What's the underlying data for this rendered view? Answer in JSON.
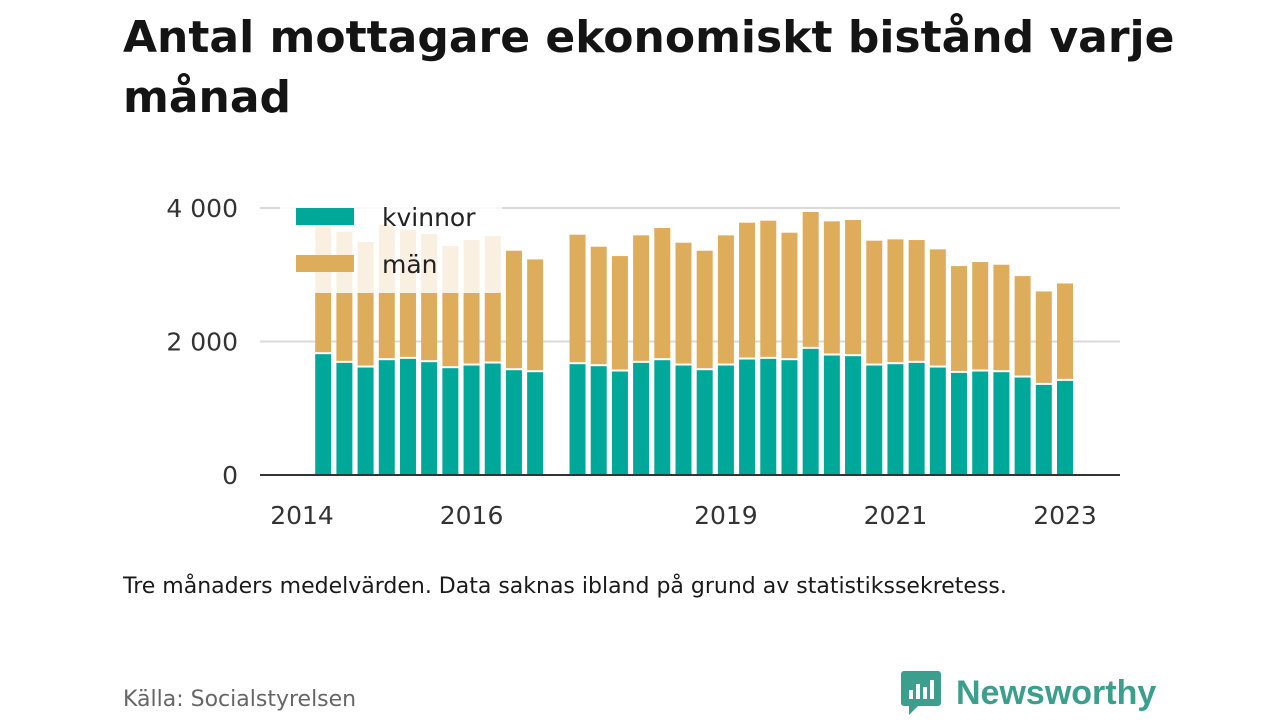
{
  "title": "Antal mottagare ekonomiskt bistånd varje månad",
  "footnote": "Tre månaders medelvärden. Data saknas ibland på grund av statistikssekretess.",
  "source": "Källa: Socialstyrelsen",
  "brand": {
    "name": "Newsworthy",
    "color": "#3c9e8c"
  },
  "chart_data": {
    "type": "bar",
    "stacked": true,
    "ylim": [
      0,
      4000
    ],
    "yticks": [
      0,
      2000,
      4000
    ],
    "ytick_labels": [
      "0",
      "2 000",
      "4 000"
    ],
    "xtick_labels": [
      "2014",
      "2016",
      "2019",
      "2021",
      "2023"
    ],
    "grid": true,
    "legend_position": "top-left",
    "categories": [
      "2014-Q2",
      "2014-Q3",
      "2014-Q4",
      "2015-Q1",
      "2015-Q2",
      "2015-Q3",
      "2015-Q4",
      "2016-Q1",
      "2016-Q2",
      "2016-Q3",
      "2016-Q4",
      "2017-Q1",
      "2017-Q2",
      "2017-Q3",
      "2017-Q4",
      "2018-Q1",
      "2018-Q2",
      "2018-Q3",
      "2018-Q4",
      "2019-Q1",
      "2019-Q2",
      "2019-Q3",
      "2019-Q4",
      "2020-Q1",
      "2020-Q2",
      "2020-Q3",
      "2020-Q4",
      "2021-Q1",
      "2021-Q2",
      "2021-Q3",
      "2021-Q4",
      "2022-Q1",
      "2022-Q2",
      "2022-Q3",
      "2022-Q4",
      "2023-Q1"
    ],
    "series": [
      {
        "name": "kvinnor",
        "color": "#00a89a",
        "values": [
          1810,
          1680,
          1610,
          1720,
          1740,
          1690,
          1600,
          1640,
          1670,
          1570,
          1540,
          null,
          1660,
          1630,
          1550,
          1680,
          1720,
          1640,
          1570,
          1640,
          1730,
          1740,
          1720,
          1890,
          1790,
          1780,
          1640,
          1660,
          1680,
          1610,
          1530,
          1550,
          1540,
          1460,
          1350,
          1410
        ]
      },
      {
        "name": "män",
        "color": "#ddad5b",
        "values": [
          1990,
          1970,
          1880,
          2030,
          1930,
          1920,
          1830,
          1880,
          1910,
          1790,
          1690,
          null,
          1940,
          1790,
          1730,
          1910,
          1980,
          1840,
          1790,
          1950,
          2050,
          2070,
          1910,
          2050,
          2010,
          2040,
          1870,
          1870,
          1840,
          1770,
          1600,
          1640,
          1610,
          1520,
          1400,
          1460
        ]
      }
    ]
  }
}
